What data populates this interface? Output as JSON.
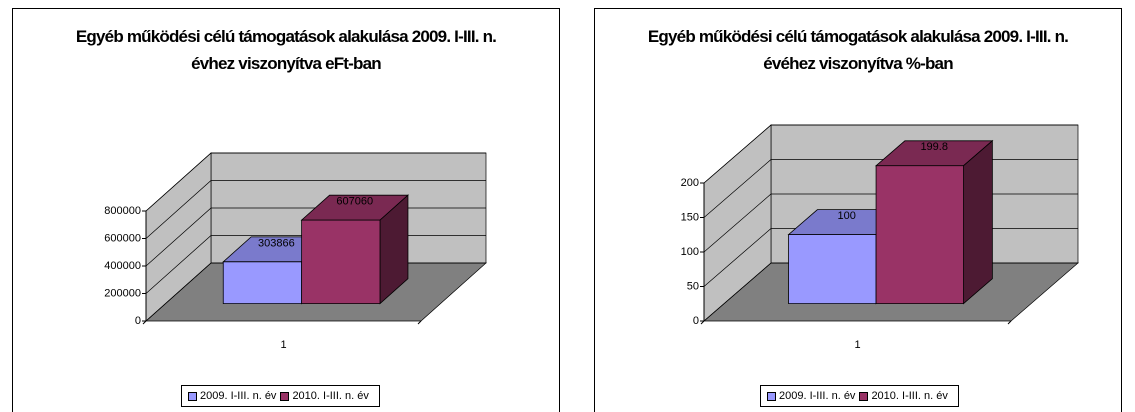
{
  "chart_data": [
    {
      "type": "bar3d",
      "title": "Egyéb működési célú támogatások alakulása 2009. I-III. n. évhez viszonyítva eFt-ban",
      "categories": [
        "1"
      ],
      "series": [
        {
          "name": "2009. I-III. n. év",
          "color": "#9999ff",
          "values": [
            303866
          ]
        },
        {
          "name": "2010. I-III. n. év",
          "color": "#993366",
          "values": [
            607060
          ]
        }
      ],
      "ylim": [
        0,
        800000
      ],
      "yticks": [
        0,
        200000,
        400000,
        600000,
        800000
      ],
      "grid": true,
      "legend": "bottom"
    },
    {
      "type": "bar3d",
      "title": "Egyéb működési célú támogatások alakulása 2009. I-III. n. évéhez viszonyítva %-ban",
      "categories": [
        "1"
      ],
      "series": [
        {
          "name": "2009. I-III. n. év",
          "color": "#9999ff",
          "values": [
            100
          ]
        },
        {
          "name": "2010. I-III. n. év",
          "color": "#993366",
          "values": [
            199.8
          ]
        }
      ],
      "ylim": [
        0,
        200
      ],
      "yticks": [
        0,
        50,
        100,
        150,
        200
      ],
      "grid": true,
      "legend": "bottom"
    }
  ]
}
